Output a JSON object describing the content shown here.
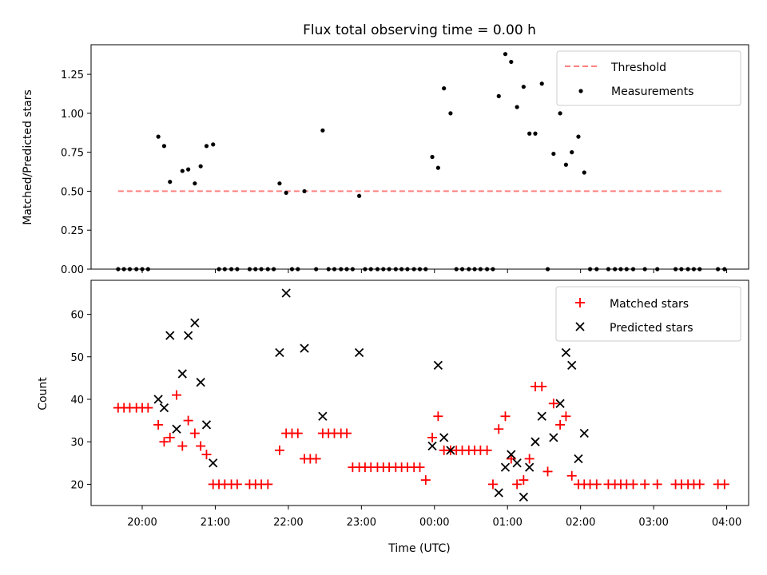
{
  "title": "Flux total observing time = 0.00 h",
  "chart_data": [
    {
      "type": "scatter",
      "ylabel": "Matched/Predicted stars",
      "xlim": [
        19.3,
        4.3
      ],
      "ylim": [
        0.0,
        1.44
      ],
      "yticks": [
        "0.00",
        "0.25",
        "0.50",
        "0.75",
        "1.00",
        "1.25"
      ],
      "threshold": 0.5,
      "threshold_x": [
        19.67,
        3.97
      ],
      "legend": [
        "Threshold",
        "Measurements"
      ],
      "legend_position": "upper right",
      "series": [
        {
          "name": "Measurements",
          "x": [
            19.67,
            19.75,
            19.83,
            19.92,
            20.0,
            20.08,
            20.22,
            20.3,
            20.38,
            20.55,
            20.63,
            20.72,
            20.8,
            20.88,
            20.97,
            21.05,
            21.13,
            21.22,
            21.3,
            21.47,
            21.55,
            21.63,
            21.72,
            21.8,
            21.88,
            21.97,
            22.05,
            22.13,
            22.22,
            22.38,
            22.47,
            22.55,
            22.63,
            22.72,
            22.8,
            22.88,
            22.97,
            23.05,
            23.13,
            23.22,
            23.3,
            23.38,
            23.47,
            23.55,
            23.63,
            23.72,
            23.8,
            23.88,
            23.97,
            0.05,
            0.13,
            0.22,
            0.3,
            0.38,
            0.47,
            0.55,
            0.63,
            0.72,
            0.8,
            0.88,
            0.97,
            1.05,
            1.13,
            1.22,
            1.3,
            1.38,
            1.47,
            1.55,
            1.63,
            1.72,
            1.8,
            1.88,
            1.97,
            2.05,
            2.13,
            2.22,
            2.38,
            2.47,
            2.55,
            2.63,
            2.72,
            2.88,
            3.05,
            3.3,
            3.38,
            3.47,
            3.55,
            3.63,
            3.88,
            3.97
          ],
          "y": [
            0,
            0,
            0,
            0,
            0,
            0,
            0.85,
            0.79,
            0.56,
            0.63,
            0.64,
            0.55,
            0.66,
            0.79,
            0.8,
            0,
            0,
            0,
            0,
            0,
            0,
            0,
            0,
            0,
            0.55,
            0.49,
            0,
            0,
            0.5,
            0,
            0.89,
            0,
            0,
            0,
            0,
            0,
            0.47,
            0,
            0,
            0,
            0,
            0,
            0,
            0,
            0,
            0,
            0,
            0,
            0.72,
            0.65,
            1.16,
            1.0,
            0,
            0,
            0,
            0,
            0,
            0,
            0,
            1.11,
            1.38,
            1.33,
            1.04,
            1.17,
            0.87,
            0.87,
            1.19,
            0,
            0.74,
            1.0,
            0.67,
            0.75,
            0.85,
            0.62,
            0,
            0,
            0,
            0,
            0,
            0,
            0,
            0,
            0,
            0,
            0,
            0,
            0,
            0,
            0,
            0
          ]
        }
      ]
    },
    {
      "type": "scatter",
      "xlabel": "Time (UTC)",
      "ylabel": "Count",
      "xlim": [
        19.3,
        4.3
      ],
      "ylim": [
        15,
        68
      ],
      "yticks": [
        "20",
        "30",
        "40",
        "50",
        "60"
      ],
      "xticks": [
        "20:00",
        "21:00",
        "22:00",
        "23:00",
        "00:00",
        "01:00",
        "02:00",
        "03:00",
        "04:00"
      ],
      "legend": [
        "Matched stars",
        "Predicted stars"
      ],
      "legend_position": "upper right",
      "series": [
        {
          "name": "Matched stars",
          "color": "#ff0000",
          "marker": "plus",
          "x": [
            19.67,
            19.75,
            19.83,
            19.92,
            20.0,
            20.08,
            20.22,
            20.3,
            20.38,
            20.47,
            20.55,
            20.63,
            20.72,
            20.8,
            20.88,
            20.97,
            21.05,
            21.13,
            21.22,
            21.3,
            21.47,
            21.55,
            21.63,
            21.72,
            21.88,
            21.97,
            22.05,
            22.13,
            22.22,
            22.3,
            22.38,
            22.47,
            22.55,
            22.63,
            22.72,
            22.8,
            22.88,
            22.97,
            23.05,
            23.13,
            23.22,
            23.3,
            23.38,
            23.47,
            23.55,
            23.63,
            23.72,
            23.8,
            23.88,
            23.97,
            0.05,
            0.13,
            0.22,
            0.3,
            0.38,
            0.47,
            0.55,
            0.63,
            0.72,
            0.8,
            0.88,
            0.97,
            1.05,
            1.13,
            1.22,
            1.3,
            1.38,
            1.47,
            1.55,
            1.63,
            1.72,
            1.8,
            1.88,
            1.97,
            2.05,
            2.13,
            2.22,
            2.38,
            2.47,
            2.55,
            2.63,
            2.72,
            2.88,
            3.05,
            3.3,
            3.38,
            3.47,
            3.55,
            3.63,
            3.88,
            3.97
          ],
          "y": [
            38,
            38,
            38,
            38,
            38,
            38,
            34,
            30,
            31,
            41,
            29,
            35,
            32,
            29,
            27,
            20,
            20,
            20,
            20,
            20,
            20,
            20,
            20,
            20,
            28,
            32,
            32,
            32,
            26,
            26,
            26,
            32,
            32,
            32,
            32,
            32,
            24,
            24,
            24,
            24,
            24,
            24,
            24,
            24,
            24,
            24,
            24,
            24,
            21,
            31,
            36,
            28,
            28,
            28,
            28,
            28,
            28,
            28,
            28,
            20,
            33,
            36,
            26,
            20,
            21,
            26,
            43,
            43,
            23,
            39,
            34,
            36,
            22,
            20,
            20,
            20,
            20,
            20,
            20,
            20,
            20,
            20,
            20,
            20,
            20,
            20,
            20,
            20,
            20,
            20,
            20
          ]
        },
        {
          "name": "Predicted stars",
          "color": "#000000",
          "marker": "x",
          "x": [
            20.22,
            20.3,
            20.38,
            20.47,
            20.55,
            20.63,
            20.72,
            20.8,
            20.88,
            20.97,
            21.88,
            21.97,
            22.22,
            22.47,
            22.97,
            23.97,
            0.05,
            0.13,
            0.22,
            0.88,
            0.97,
            1.05,
            1.13,
            1.22,
            1.3,
            1.38,
            1.47,
            1.63,
            1.72,
            1.8,
            1.88,
            1.97,
            2.05
          ],
          "y": [
            40,
            38,
            55,
            33,
            46,
            55,
            58,
            44,
            34,
            25,
            51,
            65,
            52,
            36,
            51,
            29,
            48,
            31,
            28,
            18,
            24,
            27,
            25,
            17,
            24,
            30,
            36,
            31,
            39,
            51,
            48,
            26,
            32
          ]
        }
      ]
    }
  ]
}
